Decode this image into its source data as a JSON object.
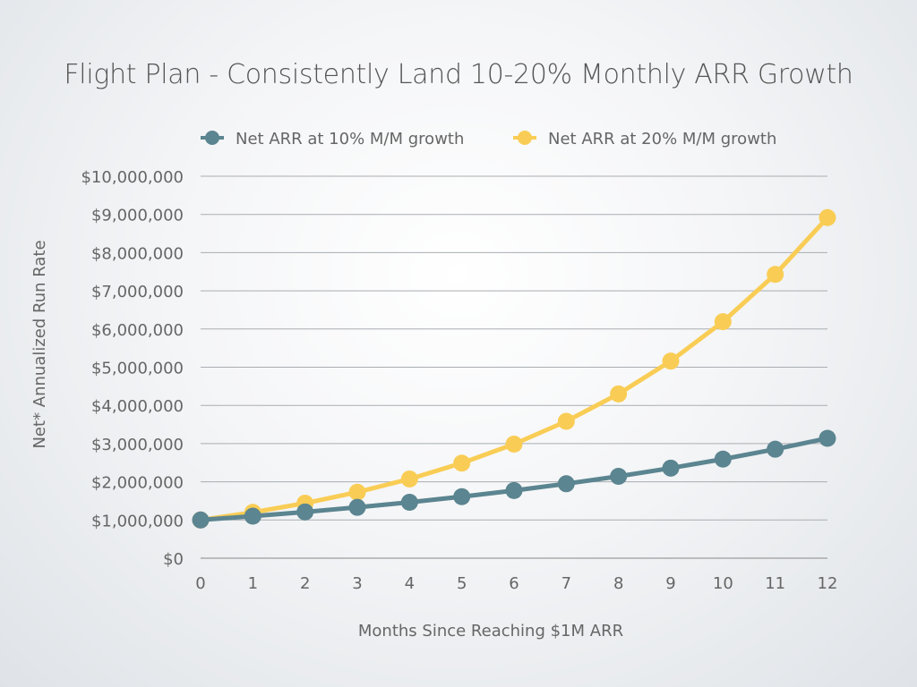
{
  "chart_data": {
    "type": "line",
    "title": "Flight Plan - Consistently Land 10-20% Monthly ARR Growth",
    "xlabel": "Months Since Reaching $1M ARR",
    "ylabel": "Net* Annualized Run Rate",
    "x": [
      0,
      1,
      2,
      3,
      4,
      5,
      6,
      7,
      8,
      9,
      10,
      11,
      12
    ],
    "ylim": [
      0,
      10000000
    ],
    "y_ticks": [
      "$0",
      "$1,000,000",
      "$2,000,000",
      "$3,000,000",
      "$4,000,000",
      "$5,000,000",
      "$6,000,000",
      "$7,000,000",
      "$8,000,000",
      "$9,000,000",
      "$10,000,000"
    ],
    "x_ticks": [
      "0",
      "1",
      "2",
      "3",
      "4",
      "5",
      "6",
      "7",
      "8",
      "9",
      "10",
      "11",
      "12"
    ],
    "grid": "horizontal",
    "legend_position": "top-center",
    "series": [
      {
        "name": "Net ARR at 10% M/M growth",
        "color": "#5b8590",
        "values": [
          1000000,
          1100000,
          1210000,
          1331000,
          1464100,
          1610510,
          1771561,
          1948717,
          2143589,
          2357948,
          2593742,
          2853117,
          3138428
        ]
      },
      {
        "name": "Net ARR at 20% M/M growth",
        "color": "#f9cd55",
        "values": [
          1000000,
          1200000,
          1440000,
          1728000,
          2073600,
          2488320,
          2985984,
          3583181,
          4299817,
          5159780,
          6191736,
          7430084,
          8916100
        ]
      }
    ]
  }
}
